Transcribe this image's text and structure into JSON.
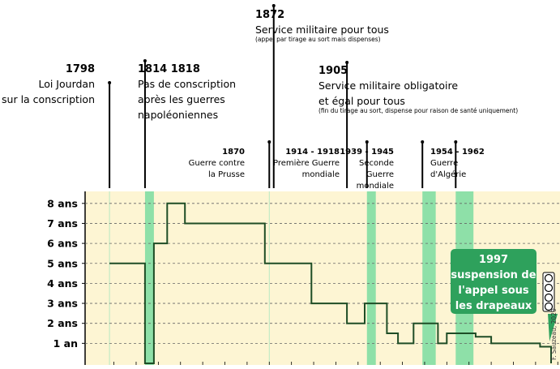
{
  "chart_data": {
    "type": "line",
    "y_labels": [
      "8 ans",
      "7 ans",
      "6 ans",
      "5 ans",
      "4 ans",
      "3 ans",
      "2 ans",
      "1 an"
    ],
    "y_values": [
      8,
      7,
      6,
      5,
      4,
      3,
      2,
      1
    ],
    "ylim": [
      0,
      8.5
    ],
    "xlim": [
      1787,
      2001
    ],
    "grid": true,
    "series": [
      {
        "values": [
          [
            1798,
            5
          ],
          [
            1814,
            5
          ],
          [
            1814,
            0
          ],
          [
            1818,
            0
          ],
          [
            1818,
            6
          ],
          [
            1824,
            6
          ],
          [
            1824,
            8
          ],
          [
            1832,
            8
          ],
          [
            1832,
            7
          ],
          [
            1868,
            7
          ],
          [
            1868,
            5
          ],
          [
            1889,
            5
          ],
          [
            1889,
            3
          ],
          [
            1905,
            3
          ],
          [
            1905,
            2
          ],
          [
            1913,
            2
          ],
          [
            1913,
            3
          ],
          [
            1923,
            3
          ],
          [
            1923,
            1.5
          ],
          [
            1928,
            1.5
          ],
          [
            1928,
            1
          ],
          [
            1935,
            1
          ],
          [
            1935,
            2
          ],
          [
            1946,
            2
          ],
          [
            1946,
            1
          ],
          [
            1950,
            1
          ],
          [
            1950,
            1.5
          ],
          [
            1963,
            1.5
          ],
          [
            1963,
            1.33
          ],
          [
            1970,
            1.33
          ],
          [
            1970,
            1
          ],
          [
            1992,
            1
          ],
          [
            1992,
            0.83
          ],
          [
            1997,
            0.83
          ],
          [
            1997,
            0
          ]
        ]
      }
    ],
    "periods": [
      {
        "start": 1814,
        "end": 1818
      },
      {
        "start": 1914,
        "end": 1918
      },
      {
        "start": 1939,
        "end": 1945
      },
      {
        "start": 1954,
        "end": 1962
      }
    ],
    "events": [
      {
        "year": 1798,
        "year_label": "1798",
        "lines": [
          "Loi Jourdan",
          "sur la conscription"
        ],
        "small": "",
        "align": "end"
      },
      {
        "year": 1814,
        "year_label": "1814  1818",
        "lines": [
          "Pas de conscription",
          "après les guerres",
          "napoléoniennes"
        ],
        "small": "",
        "align": "start"
      },
      {
        "year": 1872,
        "year_label": "1872",
        "lines": [
          "Service militaire pour tous"
        ],
        "small": "(appel par tirage au sort mais dispenses)",
        "align": "start"
      },
      {
        "year": 1905,
        "year_label": "1905",
        "lines": [
          "Service militaire obligatoire",
          "et égal pour tous"
        ],
        "small": "(fin du tirage au sort, dispense pour raison de santé uniquement)",
        "align": "start"
      },
      {
        "year": 1870,
        "year_label": "1870",
        "lines": [
          "Guerre contre",
          "la Prusse"
        ],
        "small": "",
        "align": "end"
      },
      {
        "year": 1914,
        "year_label": "1914 - 1918",
        "lines": [
          "Première Guerre",
          "mondiale"
        ],
        "small": "",
        "align": "end"
      },
      {
        "year": 1939,
        "year_label": "1939 - 1945",
        "lines": [
          "Seconde",
          "Guerre",
          "mondiale"
        ],
        "small": "",
        "align": "end"
      },
      {
        "year": 1954,
        "year_label": "1954 - 1962",
        "lines": [
          "Guerre",
          "d'Algérie"
        ],
        "small": "",
        "align": "start"
      }
    ],
    "callout": {
      "year": 1997,
      "lines": [
        "1997",
        "suspension de",
        "l'appel sous",
        "les drapeaux"
      ]
    },
    "credit": "F. Sauzeau, 2020",
    "license_badge": "cc-by-sa-icon",
    "colors": {
      "plot_background": "#fdf5d3",
      "period_band": "#8ee0a8",
      "line": "#1e4d26",
      "callout": "#2ea15c",
      "grid": "#666666"
    }
  }
}
